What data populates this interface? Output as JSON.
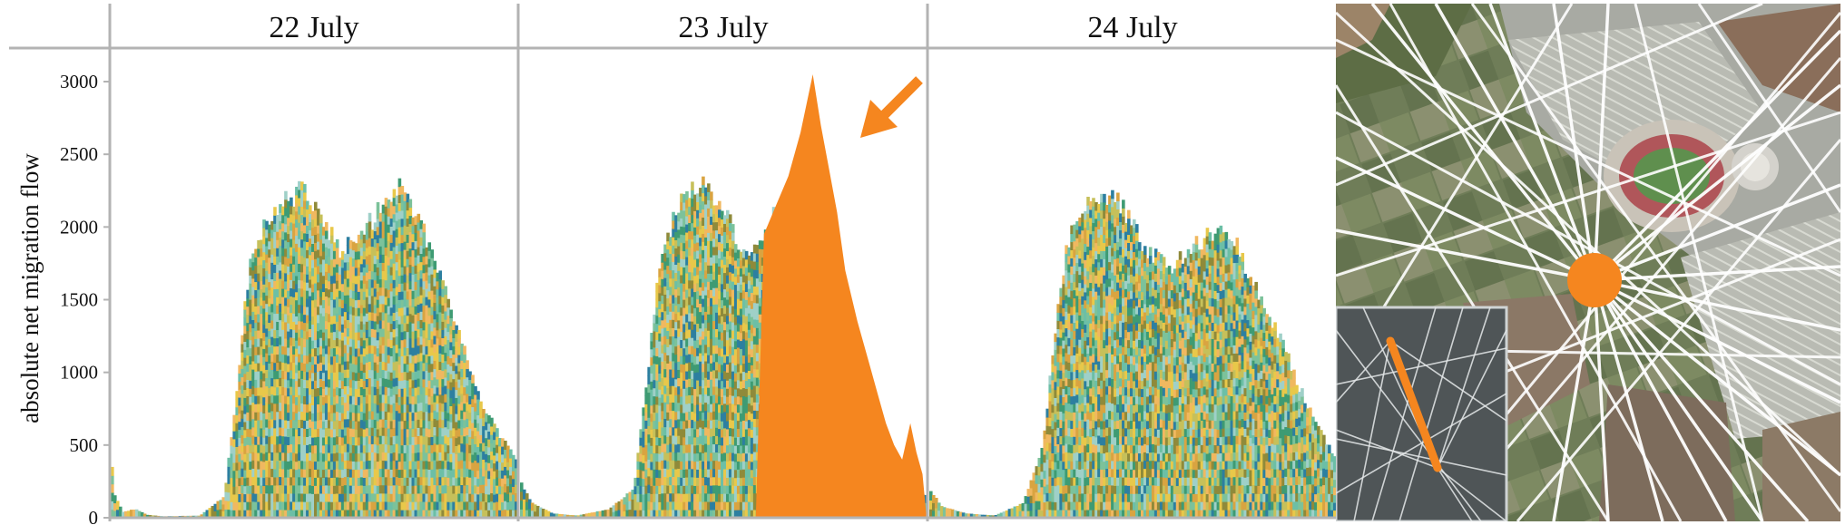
{
  "chart_data": {
    "type": "area",
    "title": "",
    "xlabel": "",
    "ylabel": "absolute net migration flow",
    "ylim": [
      0,
      3000
    ],
    "yticks": [
      0,
      500,
      1000,
      1500,
      2000,
      2500,
      3000
    ],
    "grid": false,
    "panels": [
      {
        "label": "22 July",
        "envelope": [
          [
            0.0,
            450
          ],
          [
            0.01,
            150
          ],
          [
            0.03,
            40
          ],
          [
            0.06,
            60
          ],
          [
            0.09,
            20
          ],
          [
            0.13,
            10
          ],
          [
            0.22,
            15
          ],
          [
            0.28,
            150
          ],
          [
            0.31,
            900
          ],
          [
            0.34,
            1700
          ],
          [
            0.37,
            1950
          ],
          [
            0.4,
            2100
          ],
          [
            0.43,
            2200
          ],
          [
            0.47,
            2250
          ],
          [
            0.5,
            2150
          ],
          [
            0.53,
            2000
          ],
          [
            0.56,
            1850
          ],
          [
            0.6,
            1950
          ],
          [
            0.64,
            2050
          ],
          [
            0.68,
            2150
          ],
          [
            0.71,
            2250
          ],
          [
            0.75,
            2100
          ],
          [
            0.79,
            1850
          ],
          [
            0.83,
            1500
          ],
          [
            0.87,
            1150
          ],
          [
            0.92,
            750
          ],
          [
            0.96,
            550
          ],
          [
            1.0,
            400
          ]
        ]
      },
      {
        "label": "23 July",
        "envelope": [
          [
            0.0,
            250
          ],
          [
            0.03,
            100
          ],
          [
            0.08,
            30
          ],
          [
            0.14,
            15
          ],
          [
            0.22,
            60
          ],
          [
            0.28,
            200
          ],
          [
            0.31,
            900
          ],
          [
            0.34,
            1700
          ],
          [
            0.37,
            2000
          ],
          [
            0.4,
            2200
          ],
          [
            0.43,
            2300
          ],
          [
            0.47,
            2250
          ],
          [
            0.51,
            2100
          ],
          [
            0.55,
            1800
          ],
          [
            0.58,
            1900
          ],
          [
            0.62,
            2050
          ],
          [
            0.66,
            2200
          ],
          [
            0.7,
            2400
          ],
          [
            0.73,
            2500
          ],
          [
            0.76,
            2000
          ],
          [
            0.8,
            1400
          ],
          [
            0.84,
            900
          ],
          [
            0.88,
            500
          ],
          [
            0.92,
            300
          ],
          [
            0.96,
            200
          ],
          [
            1.0,
            150
          ]
        ],
        "highlight": [
          [
            0.58,
            0
          ],
          [
            0.6,
            1950
          ],
          [
            0.63,
            2150
          ],
          [
            0.66,
            2350
          ],
          [
            0.69,
            2650
          ],
          [
            0.72,
            3050
          ],
          [
            0.74,
            2700
          ],
          [
            0.76,
            2400
          ],
          [
            0.78,
            2100
          ],
          [
            0.8,
            1700
          ],
          [
            0.83,
            1350
          ],
          [
            0.86,
            1050
          ],
          [
            0.88,
            850
          ],
          [
            0.9,
            650
          ],
          [
            0.92,
            500
          ],
          [
            0.94,
            400
          ],
          [
            0.96,
            650
          ],
          [
            0.975,
            450
          ],
          [
            0.99,
            300
          ],
          [
            1.0,
            0
          ]
        ]
      },
      {
        "label": "24 July",
        "envelope": [
          [
            0.0,
            200
          ],
          [
            0.03,
            80
          ],
          [
            0.09,
            30
          ],
          [
            0.16,
            15
          ],
          [
            0.23,
            100
          ],
          [
            0.28,
            500
          ],
          [
            0.31,
            1300
          ],
          [
            0.34,
            1900
          ],
          [
            0.37,
            2100
          ],
          [
            0.4,
            2200
          ],
          [
            0.43,
            2250
          ],
          [
            0.47,
            2150
          ],
          [
            0.51,
            1950
          ],
          [
            0.55,
            1800
          ],
          [
            0.59,
            1700
          ],
          [
            0.63,
            1800
          ],
          [
            0.67,
            1900
          ],
          [
            0.71,
            2000
          ],
          [
            0.75,
            1900
          ],
          [
            0.79,
            1650
          ],
          [
            0.83,
            1400
          ],
          [
            0.87,
            1200
          ],
          [
            0.91,
            900
          ],
          [
            0.95,
            650
          ],
          [
            1.0,
            400
          ]
        ]
      }
    ],
    "stack_palette": [
      "#e8c84a",
      "#9fd0c8",
      "#3e9b73",
      "#8f8a3a",
      "#f0b860",
      "#7cc29a",
      "#2d7fa0",
      "#c6c05a",
      "#6cbfa6",
      "#d9a441"
    ],
    "highlight_color": "#f5861f"
  },
  "map": {
    "node_color": "#f5861f",
    "line_color": "#ffffff",
    "inset_background": "#4f5557"
  }
}
